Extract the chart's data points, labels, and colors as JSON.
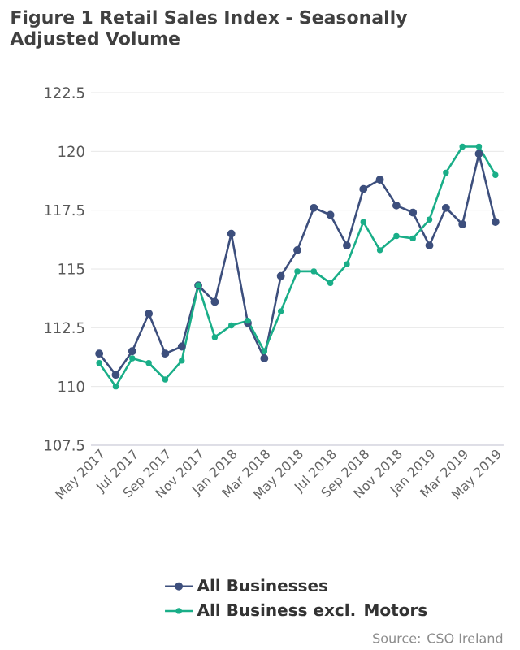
{
  "chart_data": {
    "type": "line",
    "title": "Figure 1 Retail Sales Index - Seasonally Adjusted Volume",
    "categories": [
      "May 2017",
      null,
      "Jul 2017",
      null,
      "Sep 2017",
      null,
      "Nov 2017",
      null,
      "Jan 2018",
      null,
      "Mar 2018",
      null,
      "May 2018",
      null,
      "Jul 2018",
      null,
      "Sep 2018",
      null,
      "Nov 2018",
      null,
      "Jan 2019",
      null,
      "Mar 2019",
      null,
      "May 2019"
    ],
    "series": [
      {
        "name": "All Businesses",
        "color": "#3d4f7d",
        "values": [
          111.4,
          110.5,
          111.5,
          113.1,
          111.4,
          111.7,
          114.3,
          113.6,
          116.5,
          112.7,
          111.2,
          114.7,
          115.8,
          117.6,
          117.3,
          116.0,
          118.4,
          118.8,
          117.7,
          117.4,
          116.0,
          117.6,
          116.9,
          119.9,
          117.0
        ]
      },
      {
        "name": "All Business excl. Motors",
        "color": "#1aae88",
        "values": [
          111.0,
          110.0,
          111.2,
          111.0,
          110.3,
          111.1,
          114.3,
          112.1,
          112.6,
          112.8,
          111.5,
          113.2,
          114.9,
          114.9,
          114.4,
          115.2,
          117.0,
          115.8,
          116.4,
          116.3,
          117.1,
          119.1,
          120.2,
          120.2,
          119.0
        ]
      }
    ],
    "ylim": [
      107.5,
      122.5
    ],
    "yticks": [
      107.5,
      110,
      112.5,
      115,
      117.5,
      120,
      122.5
    ],
    "grid": "y",
    "legend": "bottom",
    "marker": "circle",
    "line_style": "solid",
    "annotations": [
      "Source: CSO Ireland"
    ]
  }
}
